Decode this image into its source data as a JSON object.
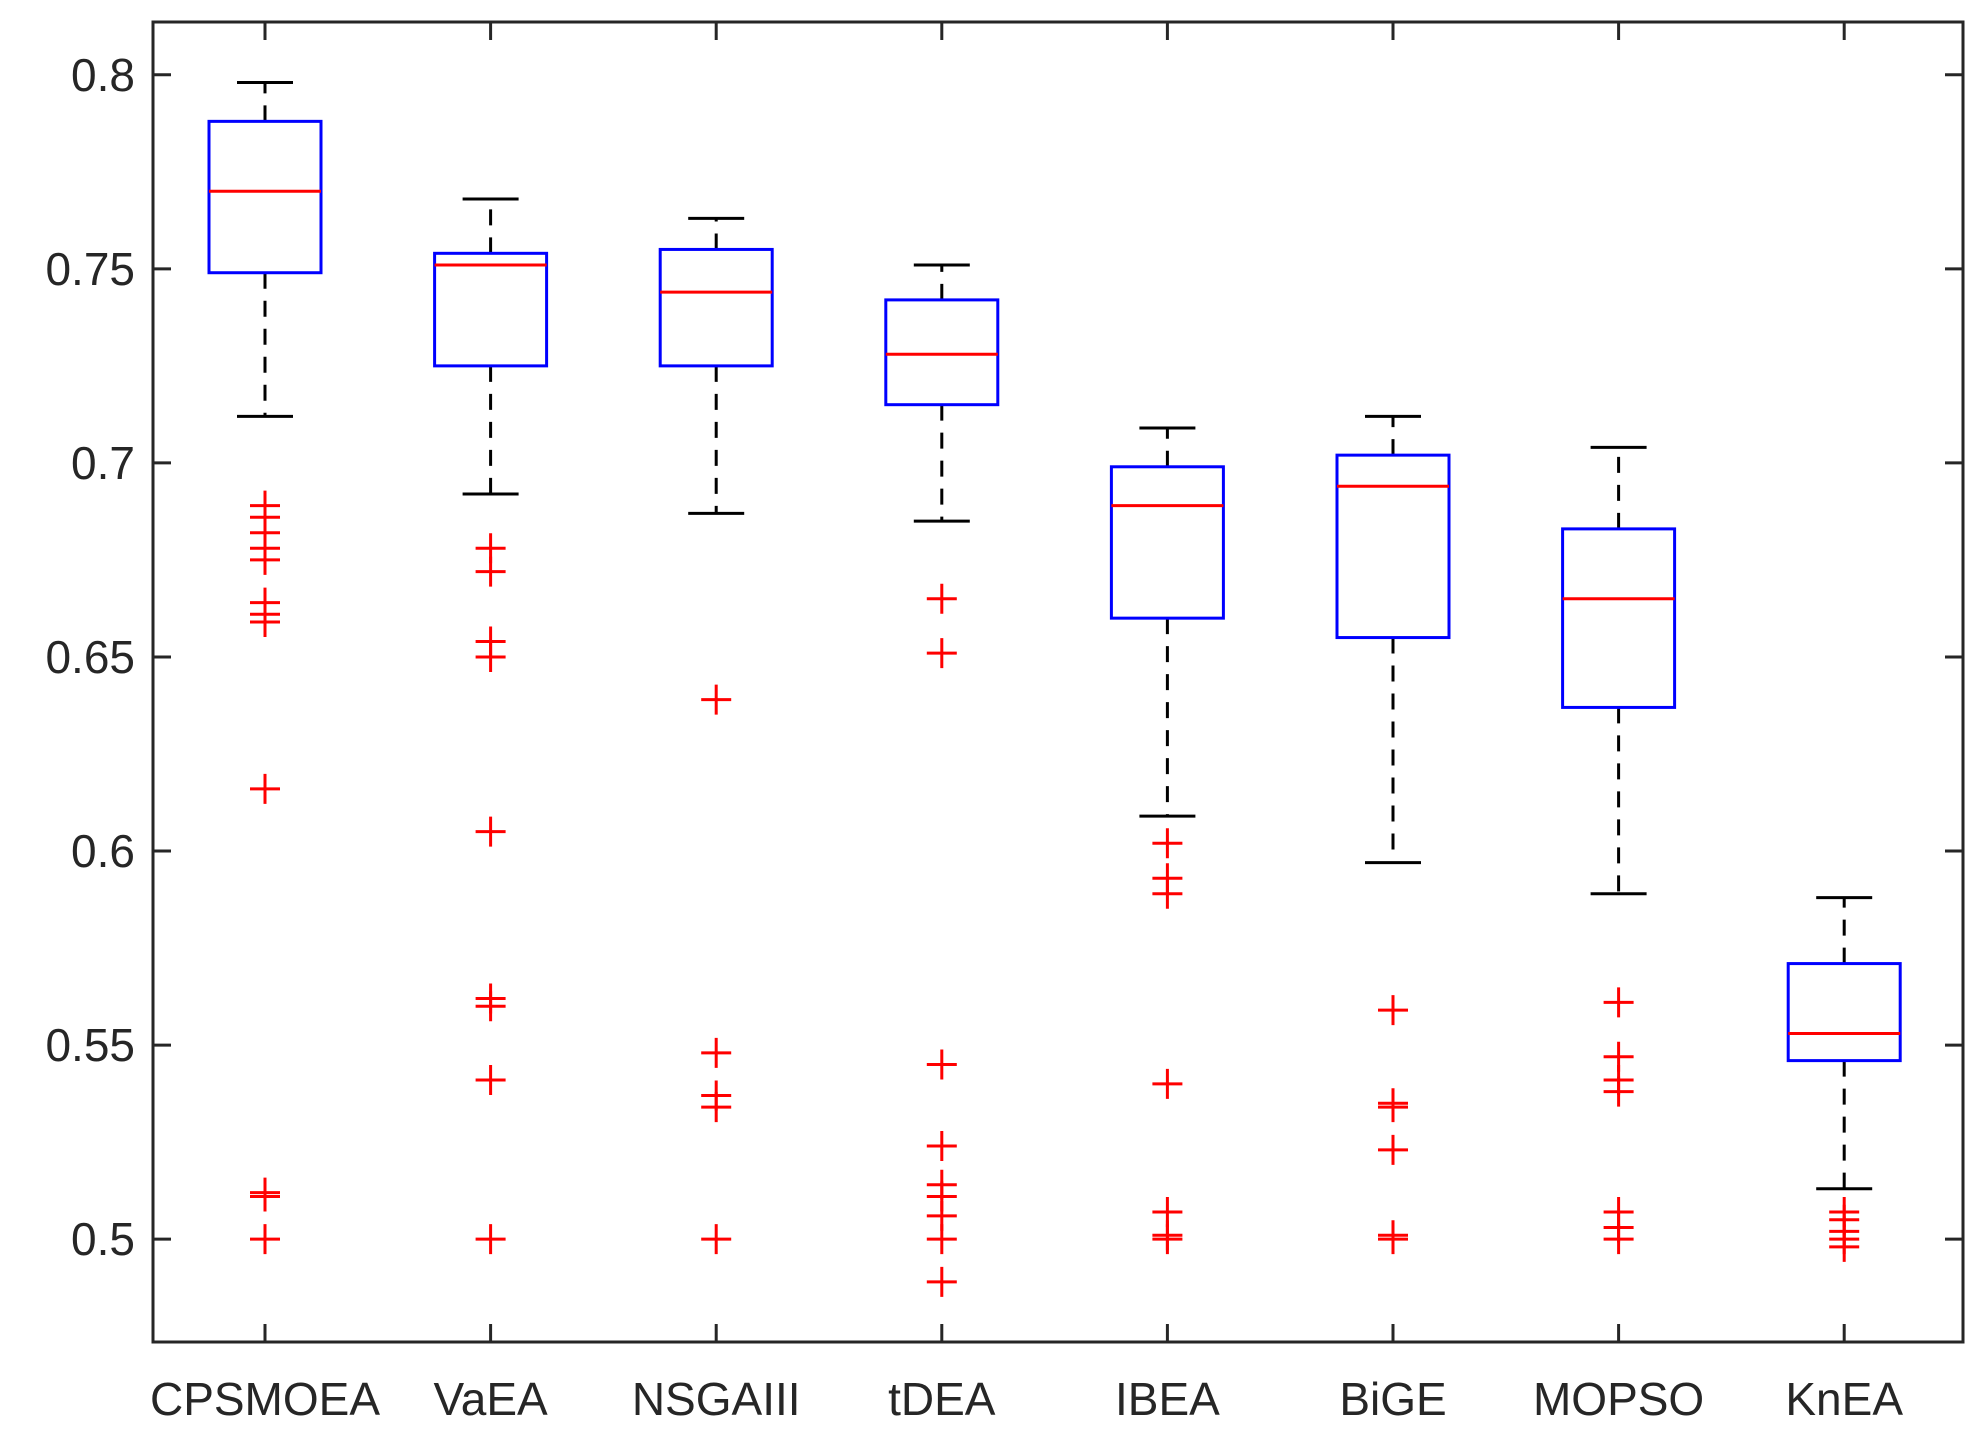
{
  "chart_data": {
    "type": "boxplot",
    "title": "",
    "xlabel": "",
    "ylabel": "",
    "ylim": [
      0.4735,
      0.8136
    ],
    "yticks": [
      0.5,
      0.55,
      0.6,
      0.65,
      0.7,
      0.75,
      0.8
    ],
    "ytick_labels": [
      "0.5",
      "0.55",
      "0.6",
      "0.65",
      "0.7",
      "0.75",
      "0.8"
    ],
    "grid": false,
    "colors": {
      "box": "#0000ff",
      "median": "#ff0000",
      "whisker": "#000000",
      "outlier": "#ff0000",
      "axis": "#262626"
    },
    "categories": [
      "CPSMOEA",
      "VaEA",
      "NSGAIII",
      "tDEA",
      "IBEA",
      "BiGE",
      "MOPSO",
      "KnEA"
    ],
    "boxes": [
      {
        "name": "CPSMOEA",
        "whisker_low": 0.712,
        "q1": 0.749,
        "median": 0.77,
        "q3": 0.788,
        "whisker_high": 0.798,
        "outliers": [
          0.689,
          0.686,
          0.682,
          0.678,
          0.675,
          0.664,
          0.661,
          0.659,
          0.616,
          0.512,
          0.511,
          0.5
        ]
      },
      {
        "name": "VaEA",
        "whisker_low": 0.692,
        "q1": 0.725,
        "median": 0.751,
        "q3": 0.754,
        "whisker_high": 0.768,
        "outliers": [
          0.678,
          0.672,
          0.654,
          0.65,
          0.605,
          0.562,
          0.56,
          0.541,
          0.5
        ]
      },
      {
        "name": "NSGAIII",
        "whisker_low": 0.687,
        "q1": 0.725,
        "median": 0.744,
        "q3": 0.755,
        "whisker_high": 0.763,
        "outliers": [
          0.639,
          0.548,
          0.537,
          0.534,
          0.5
        ]
      },
      {
        "name": "tDEA",
        "whisker_low": 0.685,
        "q1": 0.715,
        "median": 0.728,
        "q3": 0.742,
        "whisker_high": 0.751,
        "outliers": [
          0.665,
          0.651,
          0.545,
          0.524,
          0.514,
          0.511,
          0.506,
          0.5,
          0.489
        ]
      },
      {
        "name": "IBEA",
        "whisker_low": 0.609,
        "q1": 0.66,
        "median": 0.689,
        "q3": 0.699,
        "whisker_high": 0.709,
        "outliers": [
          0.602,
          0.593,
          0.589,
          0.54,
          0.507,
          0.501,
          0.5
        ]
      },
      {
        "name": "BiGE",
        "whisker_low": 0.597,
        "q1": 0.655,
        "median": 0.694,
        "q3": 0.702,
        "whisker_high": 0.712,
        "outliers": [
          0.559,
          0.535,
          0.534,
          0.523,
          0.501,
          0.5
        ]
      },
      {
        "name": "MOPSO",
        "whisker_low": 0.589,
        "q1": 0.637,
        "median": 0.665,
        "q3": 0.683,
        "whisker_high": 0.704,
        "outliers": [
          0.561,
          0.547,
          0.541,
          0.538,
          0.507,
          0.503,
          0.5
        ]
      },
      {
        "name": "KnEA",
        "whisker_low": 0.513,
        "q1": 0.546,
        "median": 0.553,
        "q3": 0.571,
        "whisker_high": 0.588,
        "outliers": [
          0.507,
          0.505,
          0.502,
          0.5,
          0.498
        ]
      }
    ]
  }
}
